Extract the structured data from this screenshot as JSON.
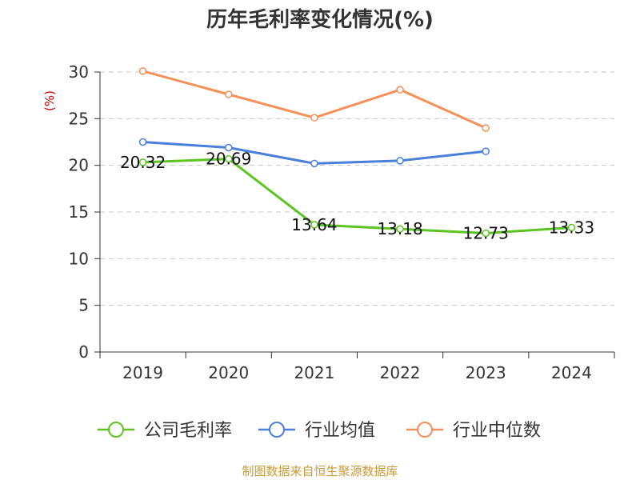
{
  "chart_data": {
    "type": "line",
    "title": "历年毛利率变化情况(%)",
    "ylabel": "(%)",
    "xlabel": "",
    "categories": [
      "2019",
      "2020",
      "2021",
      "2022",
      "2023",
      "2024"
    ],
    "ylim": [
      0,
      30
    ],
    "yticks": [
      "0",
      "5",
      "10",
      "15",
      "20",
      "25",
      "30"
    ],
    "grid": true,
    "legend_position": "bottom",
    "series": [
      {
        "name": "公司毛利率",
        "color": "#5cc421",
        "values": [
          20.32,
          20.69,
          13.64,
          13.18,
          12.73,
          13.33
        ],
        "labels": [
          "20.32",
          "20.69",
          "13.64",
          "13.18",
          "12.73",
          "13.33"
        ]
      },
      {
        "name": "行业均值",
        "color": "#4a7fdb",
        "values": [
          22.5,
          21.9,
          20.2,
          20.5,
          21.5,
          null
        ]
      },
      {
        "name": "行业中位数",
        "color": "#f5905a",
        "values": [
          30.1,
          27.6,
          25.1,
          28.1,
          24.0,
          null
        ]
      }
    ]
  },
  "source": "制图数据来自恒生聚源数据库"
}
